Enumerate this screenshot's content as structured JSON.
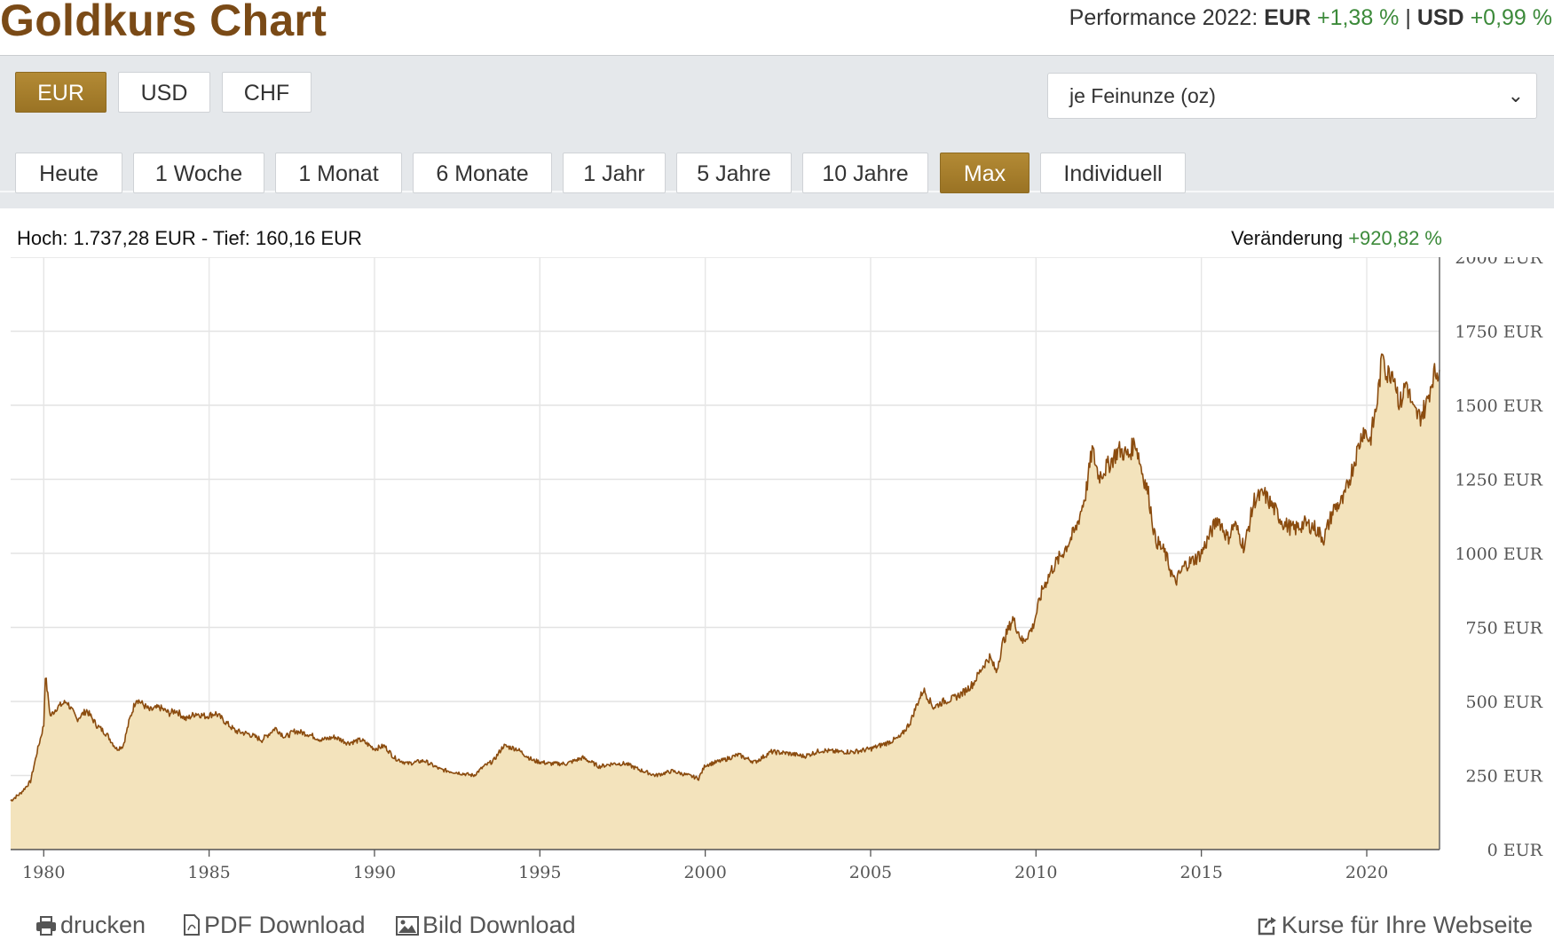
{
  "header": {
    "title": "Goldkurs Chart",
    "performance_label": "Performance 2022:",
    "eur_label": "EUR",
    "eur_value": "+1,38 %",
    "separator": "|",
    "usd_label": "USD",
    "usd_value": "+0,99 %"
  },
  "currency_buttons": [
    {
      "label": "EUR",
      "active": true
    },
    {
      "label": "USD",
      "active": false
    },
    {
      "label": "CHF",
      "active": false
    }
  ],
  "unit_select": {
    "value": "je Feinunze (oz)"
  },
  "range_buttons": [
    {
      "label": "Heute",
      "active": false
    },
    {
      "label": "1 Woche",
      "active": false
    },
    {
      "label": "1 Monat",
      "active": false
    },
    {
      "label": "6 Monate",
      "active": false
    },
    {
      "label": "1 Jahr",
      "active": false
    },
    {
      "label": "5 Jahre",
      "active": false
    },
    {
      "label": "10 Jahre",
      "active": false
    },
    {
      "label": "Max",
      "active": true
    },
    {
      "label": "Individuell",
      "active": false
    }
  ],
  "stats": {
    "hilo": "Hoch: 1.737,28 EUR - Tief: 160,16 EUR",
    "change_label": "Veränderung",
    "change_value": "+920,82 %"
  },
  "footer": {
    "print": "drucken",
    "pdf": "PDF Download",
    "image": "Bild Download",
    "embed": "Kurse für Ihre Webseite"
  },
  "colors": {
    "brand": "#7a4a16",
    "line": "#8b4c0f",
    "area": "#f3e3bc",
    "positive": "#3c8a3a",
    "active_button": "#a67d2b"
  },
  "chart_data": {
    "type": "area",
    "x_unit": "year",
    "y_unit": "EUR",
    "ylim": [
      0,
      2000
    ],
    "xlim": [
      1979,
      2022.2
    ],
    "y_ticks": [
      0,
      250,
      500,
      750,
      1000,
      1250,
      1500,
      1750,
      2000
    ],
    "y_tick_labels": [
      "0 EUR",
      "250 EUR",
      "500 EUR",
      "750 EUR",
      "1000 EUR",
      "1250 EUR",
      "1500 EUR",
      "1750 EUR",
      "2000 EUR"
    ],
    "x_ticks": [
      1980,
      1985,
      1990,
      1995,
      2000,
      2005,
      2010,
      2015,
      2020
    ],
    "x_tick_labels": [
      "1980",
      "1985",
      "1990",
      "1995",
      "2000",
      "2005",
      "2010",
      "2015",
      "2020"
    ],
    "grid": true,
    "series": [
      {
        "x": [
          1979.0,
          1979.3,
          1979.6,
          1979.8,
          1980.0,
          1980.05,
          1980.2,
          1980.4,
          1980.7,
          1981.0,
          1981.3,
          1981.6,
          1981.9,
          1982.2,
          1982.4,
          1982.6,
          1982.8,
          1983.0,
          1983.2,
          1983.5,
          1983.8,
          1984.0,
          1984.3,
          1984.6,
          1984.9,
          1985.2,
          1985.5,
          1985.8,
          1986.2,
          1986.6,
          1987.0,
          1987.3,
          1987.6,
          1988.0,
          1988.4,
          1988.8,
          1989.2,
          1989.6,
          1990.0,
          1990.3,
          1990.6,
          1991.0,
          1991.5,
          1992.0,
          1992.5,
          1993.0,
          1993.3,
          1993.6,
          1993.9,
          1994.3,
          1994.8,
          1995.3,
          1995.8,
          1996.3,
          1996.8,
          1997.2,
          1997.6,
          1998.0,
          1998.5,
          1999.0,
          1999.5,
          1999.8,
          2000.0,
          2000.5,
          2001.0,
          2001.5,
          2002.0,
          2002.5,
          2003.0,
          2003.5,
          2004.0,
          2004.5,
          2005.0,
          2005.5,
          2005.9,
          2006.2,
          2006.4,
          2006.6,
          2006.9,
          2007.2,
          2007.5,
          2007.8,
          2008.1,
          2008.4,
          2008.6,
          2008.8,
          2009.0,
          2009.3,
          2009.6,
          2009.9,
          2010.2,
          2010.5,
          2010.8,
          2011.2,
          2011.5,
          2011.7,
          2011.9,
          2012.2,
          2012.5,
          2012.8,
          2013.0,
          2013.2,
          2013.4,
          2013.6,
          2013.9,
          2014.2,
          2014.5,
          2014.8,
          2015.0,
          2015.2,
          2015.5,
          2015.8,
          2016.0,
          2016.3,
          2016.6,
          2016.9,
          2017.2,
          2017.5,
          2017.8,
          2018.1,
          2018.4,
          2018.7,
          2019.0,
          2019.3,
          2019.6,
          2019.9,
          2020.1,
          2020.3,
          2020.5,
          2020.6,
          2020.8,
          2021.0,
          2021.2,
          2021.4,
          2021.6,
          2021.8,
          2022.0,
          2022.2
        ],
        "y": [
          165,
          190,
          230,
          330,
          420,
          590,
          450,
          480,
          500,
          440,
          470,
          420,
          390,
          340,
          350,
          440,
          510,
          490,
          470,
          480,
          460,
          470,
          440,
          460,
          450,
          460,
          430,
          400,
          390,
          370,
          410,
          380,
          400,
          390,
          370,
          380,
          360,
          370,
          340,
          350,
          310,
          290,
          300,
          270,
          260,
          250,
          280,
          300,
          350,
          340,
          300,
          290,
          290,
          310,
          280,
          290,
          290,
          270,
          250,
          265,
          250,
          240,
          285,
          300,
          320,
          295,
          330,
          325,
          315,
          335,
          330,
          330,
          340,
          360,
          380,
          430,
          490,
          540,
          480,
          500,
          510,
          530,
          560,
          620,
          650,
          600,
          700,
          780,
          700,
          750,
          880,
          950,
          1000,
          1080,
          1200,
          1350,
          1260,
          1300,
          1350,
          1330,
          1380,
          1280,
          1200,
          1050,
          1000,
          900,
          960,
          980,
          1000,
          1050,
          1120,
          1050,
          1100,
          1020,
          1180,
          1200,
          1150,
          1100,
          1080,
          1100,
          1090,
          1050,
          1150,
          1180,
          1300,
          1420,
          1380,
          1500,
          1690,
          1600,
          1620,
          1500,
          1580,
          1480,
          1460,
          1500,
          1600,
          1620
        ]
      }
    ]
  }
}
